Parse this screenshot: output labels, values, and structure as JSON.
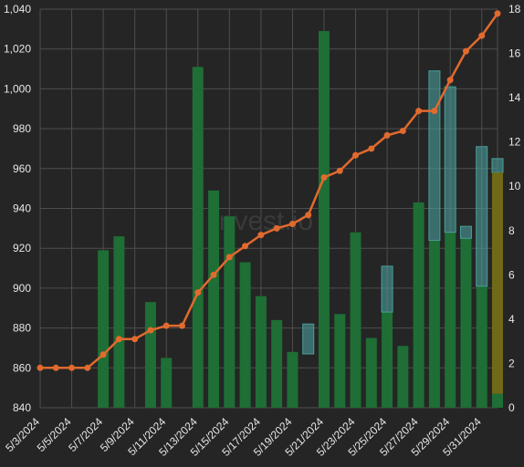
{
  "chart_data": {
    "type": "bar",
    "watermark": "invest.io",
    "x": [
      "5/3/2024",
      "5/4/2024",
      "5/5/2024",
      "5/6/2024",
      "5/7/2024",
      "5/8/2024",
      "5/9/2024",
      "5/10/2024",
      "5/11/2024",
      "5/12/2024",
      "5/13/2024",
      "5/14/2024",
      "5/15/2024",
      "5/16/2024",
      "5/17/2024",
      "5/18/2024",
      "5/19/2024",
      "5/20/2024",
      "5/21/2024",
      "5/22/2024",
      "5/23/2024",
      "5/24/2024",
      "5/25/2024",
      "5/26/2024",
      "5/27/2024",
      "5/28/2024",
      "5/29/2024",
      "5/30/2024",
      "5/31/2024",
      "6/1/2024"
    ],
    "x_tick_labels": [
      "5/3/2024",
      "5/5/2024",
      "5/7/2024",
      "5/9/2024",
      "5/11/2024",
      "5/13/2024",
      "5/15/2024",
      "5/17/2024",
      "5/19/2024",
      "5/21/2024",
      "5/23/2024",
      "5/25/2024",
      "5/27/2024",
      "5/29/2024",
      "5/31/2024"
    ],
    "y_left": {
      "ticks": [
        "840",
        "860",
        "880",
        "900",
        "920",
        "940",
        "960",
        "980",
        "1,000",
        "1,020",
        "1,040"
      ],
      "min": 840,
      "max": 1040
    },
    "y_right": {
      "ticks": [
        "0",
        "2",
        "4",
        "6",
        "8",
        "10",
        "12",
        "14",
        "16",
        "18"
      ],
      "min": 0,
      "max": 18
    },
    "series": [
      {
        "kind": "bar-green",
        "axis": "left",
        "values": [
          null,
          null,
          null,
          null,
          919,
          926,
          null,
          893,
          865,
          null,
          1011,
          949,
          936,
          913,
          896,
          884,
          868,
          null,
          1029,
          887,
          928,
          875,
          888,
          871,
          943,
          924,
          928,
          925,
          901,
          847
        ]
      },
      {
        "kind": "bar-teal",
        "axis": "left",
        "segments": [
          {
            "i": 17,
            "from": 867,
            "to": 882
          },
          {
            "i": 22,
            "from": 888,
            "to": 911
          },
          {
            "i": 25,
            "from": 924,
            "to": 1009
          },
          {
            "i": 26,
            "from": 928,
            "to": 1001
          },
          {
            "i": 27,
            "from": 925,
            "to": 931
          },
          {
            "i": 28,
            "from": 901,
            "to": 971
          },
          {
            "i": 29,
            "from": 958,
            "to": 965
          }
        ]
      },
      {
        "kind": "bar-olive",
        "axis": "left",
        "segments": [
          {
            "i": 29,
            "from": 847,
            "to": 958
          }
        ]
      },
      {
        "kind": "line",
        "axis": "right",
        "values": [
          1.8,
          1.8,
          1.8,
          1.8,
          2.4,
          3.1,
          3.1,
          3.5,
          3.7,
          3.7,
          5.2,
          6.0,
          6.8,
          7.3,
          7.8,
          8.1,
          8.3,
          8.7,
          10.4,
          10.7,
          11.4,
          11.7,
          12.3,
          12.5,
          13.4,
          13.4,
          14.8,
          16.1,
          16.8,
          17.8
        ]
      }
    ],
    "colors": {
      "background": "#252525",
      "grid": "#4e4e4e",
      "bar_green": "#1e6e35",
      "bar_teal": "#4a9e9b",
      "bar_olive": "#6f6a18",
      "line": "#e16a2e",
      "text": "#e6e6e6"
    },
    "grid": true,
    "legend": "none"
  }
}
